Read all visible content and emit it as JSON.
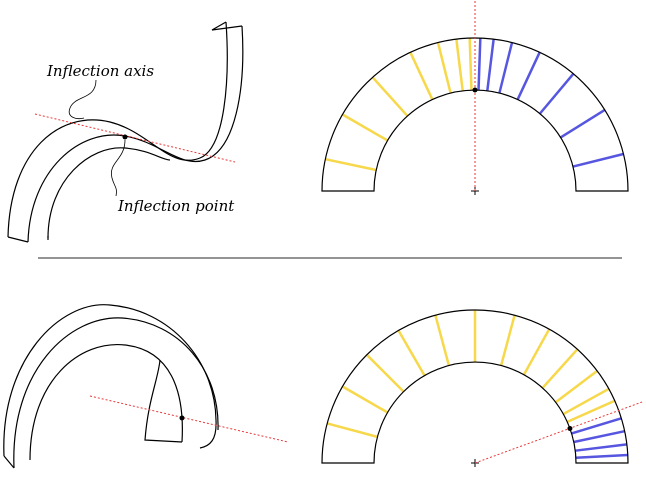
{
  "labels": {
    "axis": "Inflection axis",
    "point": "Inflection point"
  }
}
